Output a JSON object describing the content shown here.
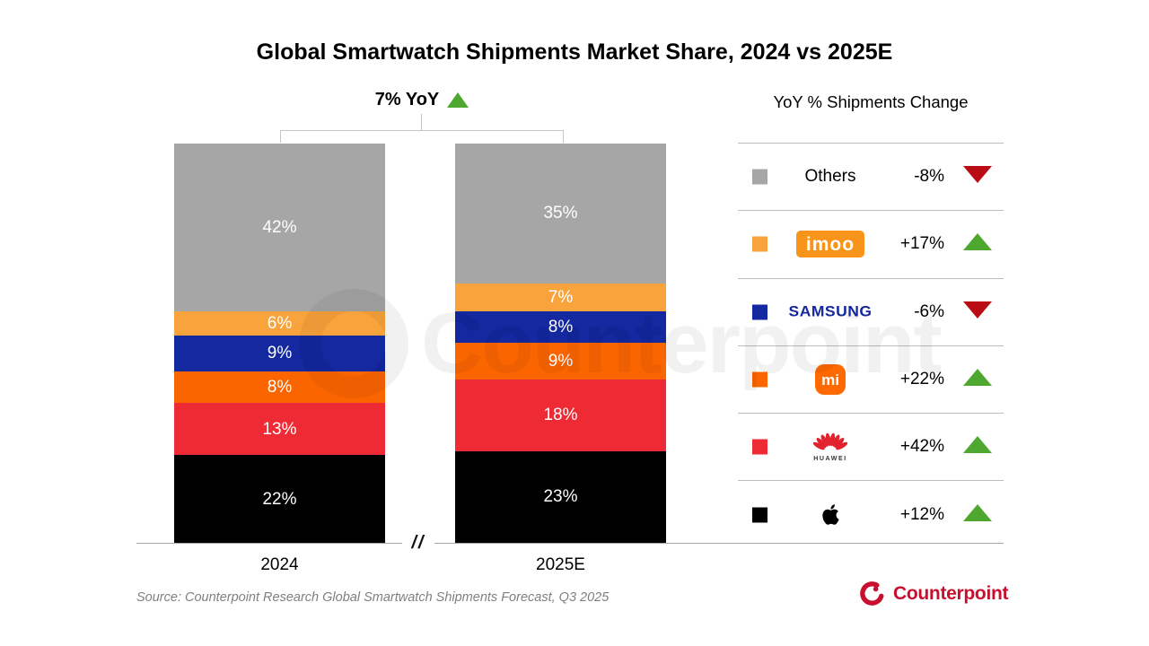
{
  "title": "Global Smartwatch Shipments Market Share, 2024 vs 2025E",
  "annotation": {
    "label": "7% YoY",
    "trend": "up"
  },
  "legend": {
    "header": "YoY % Shipments Change"
  },
  "chart_data": {
    "type": "bar",
    "variant": "stacked-100-percent",
    "categories": [
      "2024",
      "2025E"
    ],
    "unit": "%",
    "stack_order_top_to_bottom": [
      "Others",
      "imoo",
      "Samsung",
      "Xiaomi",
      "Huawei",
      "Apple"
    ],
    "series": [
      {
        "name": "Others",
        "logo_text": "Others",
        "color": "#A6A6A6",
        "values": [
          42,
          35
        ],
        "yoy_change": "-8%",
        "trend": "down"
      },
      {
        "name": "imoo",
        "logo_text": "imoo",
        "color": "#F9A33C",
        "values": [
          6,
          7
        ],
        "yoy_change": "+17%",
        "trend": "up"
      },
      {
        "name": "Samsung",
        "logo_text": "SAMSUNG",
        "color": "#1428A0",
        "values": [
          9,
          8
        ],
        "yoy_change": "-6%",
        "trend": "down"
      },
      {
        "name": "Xiaomi",
        "logo_text": "mi",
        "color": "#FB6500",
        "values": [
          8,
          9
        ],
        "yoy_change": "+22%",
        "trend": "up"
      },
      {
        "name": "Huawei",
        "logo_text": "HUAWEI",
        "color": "#EE2A35",
        "values": [
          13,
          18
        ],
        "yoy_change": "+42%",
        "trend": "up"
      },
      {
        "name": "Apple",
        "logo_text": "",
        "color": "#000000",
        "values": [
          22,
          23
        ],
        "yoy_change": "+12%",
        "trend": "up"
      }
    ],
    "total_growth_annotation": "7% YoY",
    "legend_position": "right",
    "grid": false,
    "axis_break_symbol": "//"
  },
  "source": "Source: Counterpoint Research Global Smartwatch Shipments Forecast, Q3 2025",
  "brand": {
    "name": "Counterpoint"
  },
  "watermark": {
    "text": "Counterpoint"
  },
  "colors": {
    "up_triangle": "#4EA72E",
    "down_triangle": "#B90C15",
    "brand_red": "#C8102E",
    "axis_line": "#A6A6A6"
  }
}
